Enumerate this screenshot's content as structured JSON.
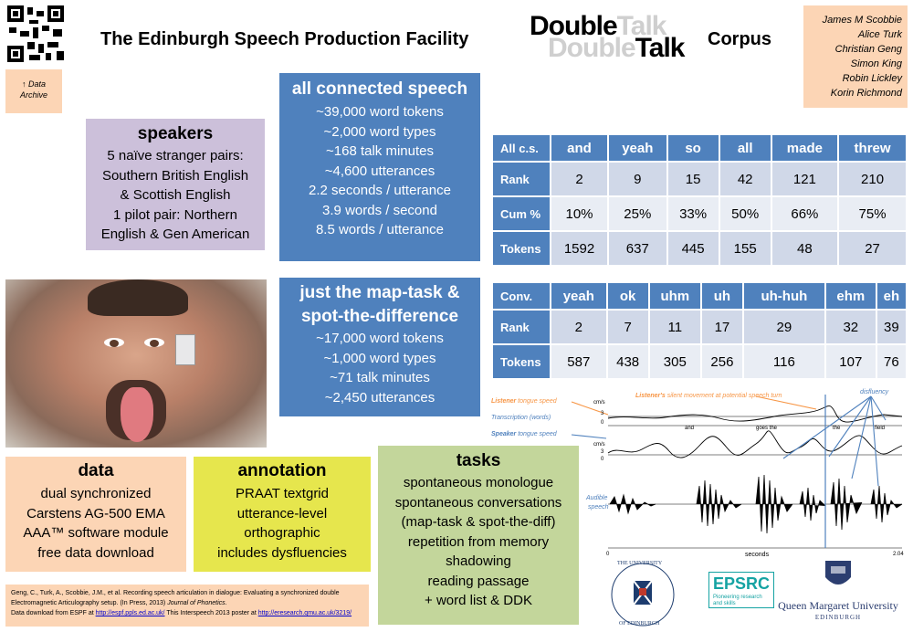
{
  "header": {
    "title": "The Edinburgh Speech Production Facility",
    "double_talk_back_1": "Double",
    "double_talk_back_2": "Talk",
    "double_talk_front_1": "Double",
    "double_talk_front_2": "Talk",
    "corpus": "Corpus"
  },
  "data_archive": {
    "arrow": "↑",
    "line1": "Data",
    "line2": "Archive"
  },
  "authors": [
    "James M Scobbie",
    "Alice Turk",
    "Christian Geng",
    "Simon King",
    "Robin Lickley",
    "Korin Richmond"
  ],
  "speakers": {
    "title": "speakers",
    "lines": [
      "5 naïve stranger pairs:",
      "Southern British English",
      "& Scottish English",
      "1 pilot pair: Northern",
      "English & Gen American"
    ]
  },
  "all_connected": {
    "title": "all connected speech",
    "lines": [
      "~39,000 word tokens",
      "~2,000 word types",
      "~168 talk minutes",
      "~4,600 utterances",
      "2.2 seconds / utterance",
      "3.9 words / second",
      "8.5 words / utterance"
    ]
  },
  "map_task": {
    "title1": "just the map-task &",
    "title2": "spot-the-difference",
    "lines": [
      "~17,000 word tokens",
      "~1,000 word types",
      "~71 talk minutes",
      "~2,450 utterances"
    ]
  },
  "table1": {
    "header": [
      "All c.s.",
      "and",
      "yeah",
      "so",
      "all",
      "made",
      "threw"
    ],
    "rows": [
      [
        "Rank",
        "2",
        "9",
        "15",
        "42",
        "121",
        "210"
      ],
      [
        "Cum %",
        "10%",
        "25%",
        "33%",
        "50%",
        "66%",
        "75%"
      ],
      [
        "Tokens",
        "1592",
        "637",
        "445",
        "155",
        "48",
        "27"
      ]
    ]
  },
  "table2": {
    "header": [
      "Conv.",
      "yeah",
      "ok",
      "uhm",
      "uh",
      "uh-huh",
      "ehm",
      "eh"
    ],
    "rows": [
      [
        "Rank",
        "2",
        "7",
        "11",
        "17",
        "29",
        "32",
        "39"
      ],
      [
        "Tokens",
        "587",
        "438",
        "305",
        "256",
        "116",
        "107",
        "76"
      ]
    ]
  },
  "data_box": {
    "title": "data",
    "lines": [
      "dual synchronized",
      "Carstens AG-500 EMA",
      "AAA™ software module",
      "free data download"
    ]
  },
  "annotation": {
    "title": "annotation",
    "lines": [
      "PRAAT textgrid",
      "utterance-level",
      "orthographic",
      "includes dysfluencies"
    ]
  },
  "tasks": {
    "title": "tasks",
    "lines": [
      "spontaneous monologue",
      "spontaneous conversations",
      "(map-task & spot-the-diff)",
      "repetition from memory",
      "shadowing",
      "reading passage",
      "+ word list & DDK"
    ]
  },
  "figure": {
    "listener_speed_1": "Listener",
    "listener_speed_2": " tongue speed",
    "transcription": "Transcription (words)",
    "speaker_speed_1": "Speaker",
    "speaker_speed_2": " tongue speed",
    "audible": "Audible",
    "speech": "speech",
    "silent_1": "Listener's",
    "silent_2": " silent movement at potential speech turn",
    "disfluency": "disfluency",
    "unit1": "cm/s",
    "unit2": "cm/s",
    "tick1": "3",
    "tick2": "0",
    "tick3": "3",
    "tick4": "0",
    "word_and": "and",
    "word_goes": "goes the",
    "word_the": "the",
    "word_field": "field",
    "xaxis_start": "0",
    "xaxis_label": "seconds",
    "xaxis_end": "2.04",
    "colors": {
      "listener": "#f79646",
      "speaker": "#4f81bd"
    }
  },
  "reference": {
    "line1": "Geng, C., Turk, A., Scobbie, J.M., et al. Recording speech articulation in dialogue: Evaluating a synchronized double",
    "line2a": "Electromagnetic Articulography setup. (In Press, 2013) ",
    "line2b": "Journal of Phonetics",
    "line2c": ".",
    "line3a": "Data download from ESPF at ",
    "link1": "http://espf.ppls.ed.ac.uk/",
    "line3b": " This Interspeech 2013 poster at ",
    "link2": "http://eresearch.qmu.ac.uk/3219/"
  },
  "logos": {
    "edinburgh_1": "THE UNIVERSITY",
    "edinburgh_2": "OF EDINBURGH",
    "epsrc": "EPSRC",
    "epsrc_sub": "Pioneering research and skills",
    "qmu": "Queen Margaret University",
    "qmu_sub": "EDINBURGH"
  }
}
